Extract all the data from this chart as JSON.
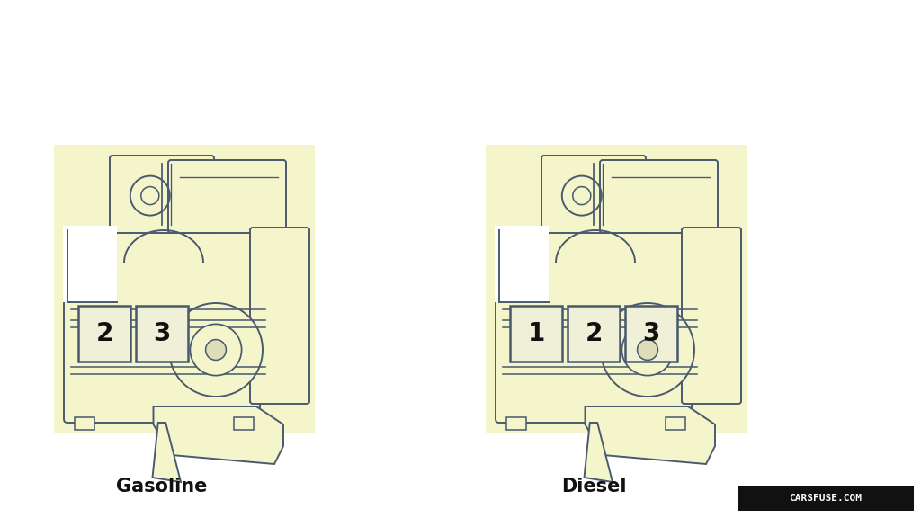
{
  "background_color": "#ffffff",
  "panel_bg": "#f5f5cc",
  "line_color": "#4a5a6e",
  "line_width": 1.4,
  "gasoline_label": "Gasoline",
  "diesel_label": "Diesel",
  "label_fontsize": 15,
  "label_fontweight": "bold",
  "watermark_text": "CARSFUSE.COM",
  "watermark_bg": "#111111",
  "watermark_color": "#ffffff",
  "gasoline_fuses": [
    "2",
    "3"
  ],
  "diesel_fuses": [
    "1",
    "2",
    "3"
  ],
  "fuse_fontsize": 20
}
